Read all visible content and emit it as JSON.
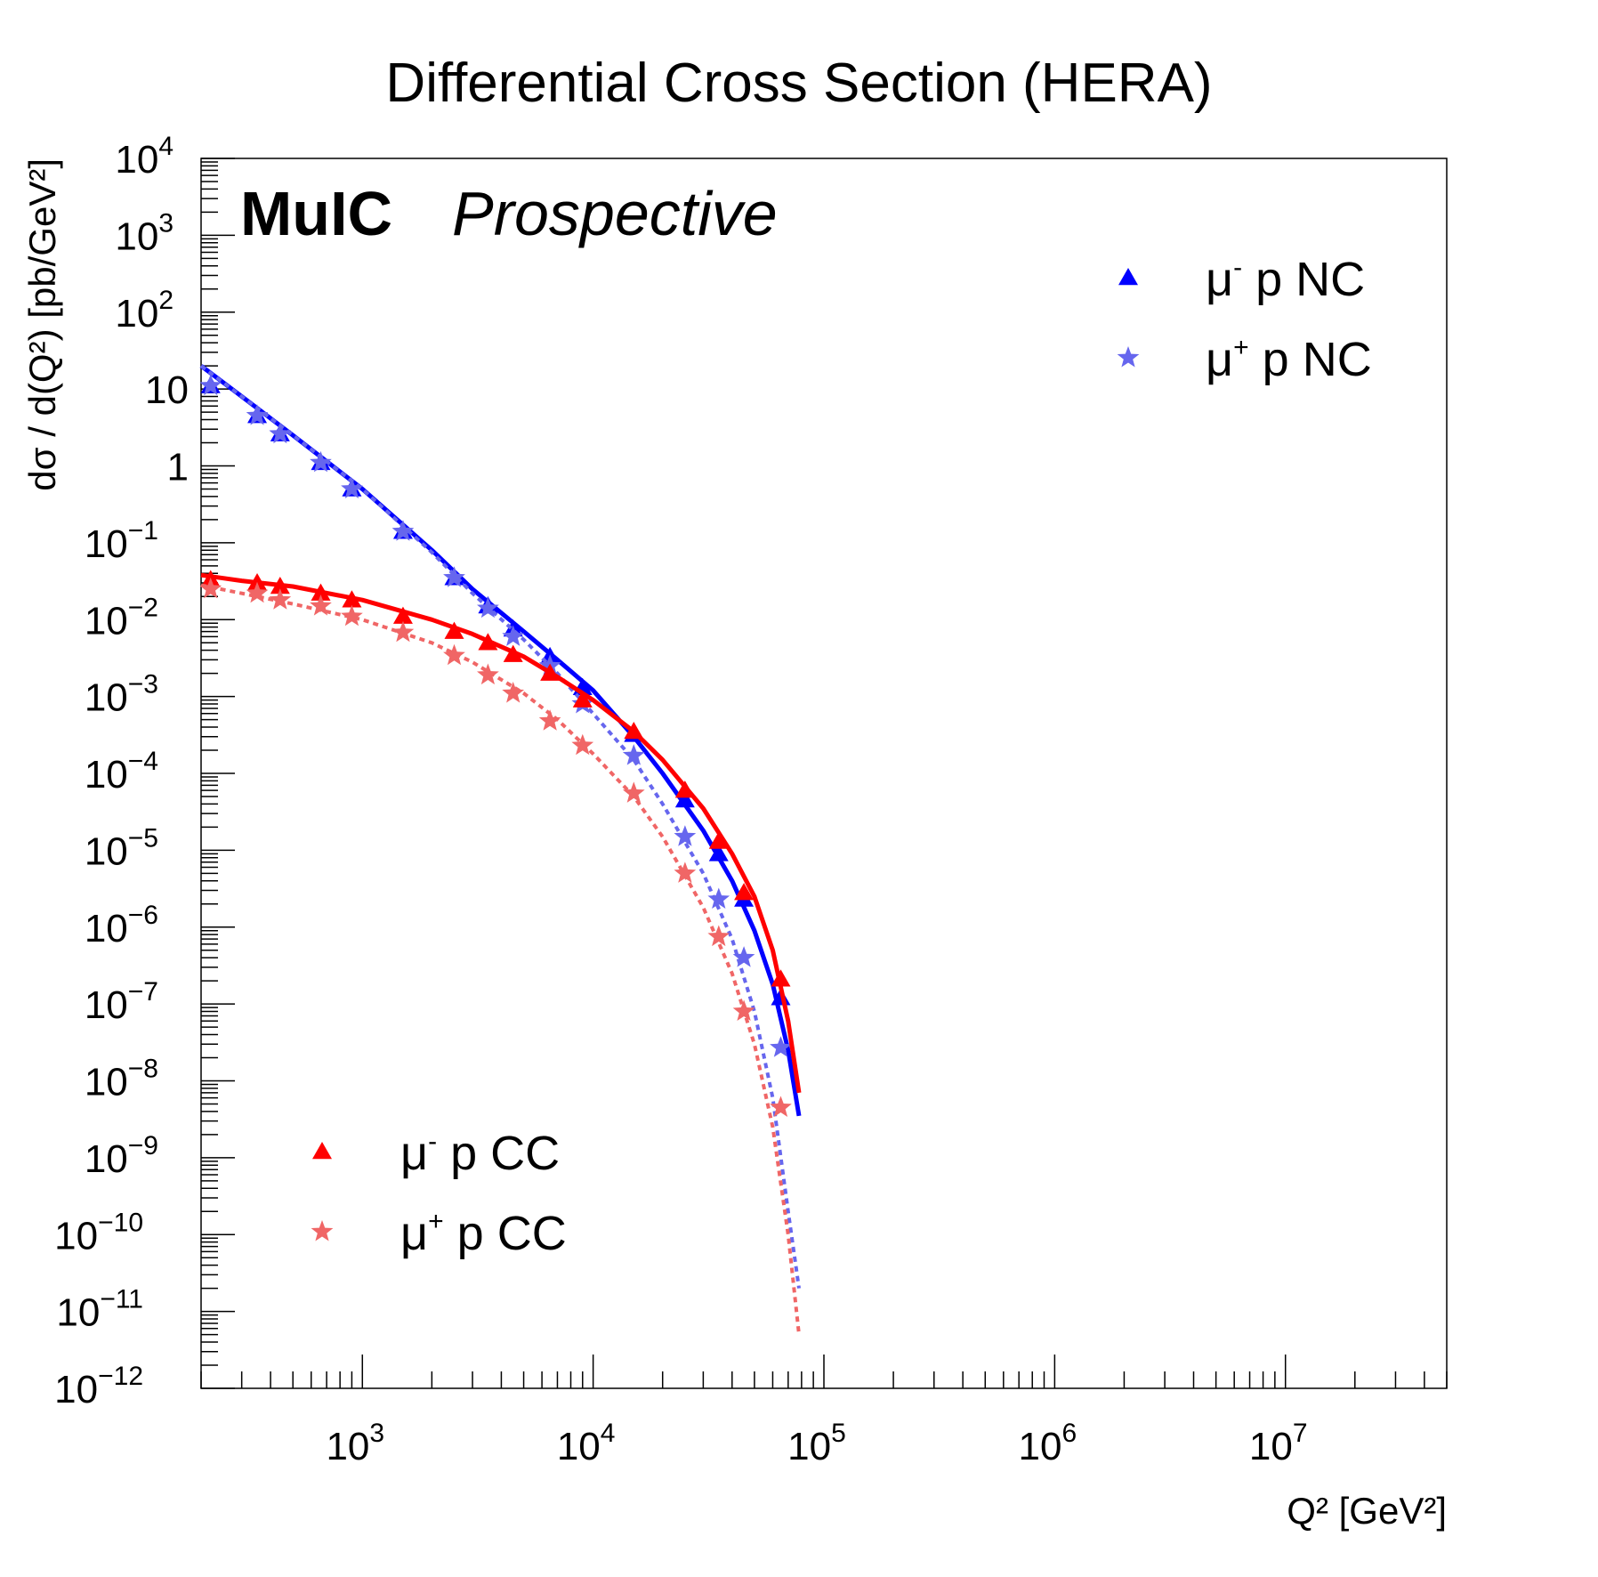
{
  "chart_data": {
    "type": "line",
    "title": "Differential Cross Section (HERA)",
    "xlabel": "Q² [GeV²]",
    "ylabel": "dσ / d(Q²) [pb/GeV²]",
    "xscale": "log",
    "yscale": "log",
    "xlim": [
      200,
      50000000
    ],
    "ylim": [
      1e-12,
      10000
    ],
    "x_ticks": [
      {
        "value": 1000,
        "base": "10",
        "exp": "3"
      },
      {
        "value": 10000,
        "base": "10",
        "exp": "4"
      },
      {
        "value": 100000,
        "base": "10",
        "exp": "5"
      },
      {
        "value": 1000000,
        "base": "10",
        "exp": "6"
      },
      {
        "value": 10000000,
        "base": "10",
        "exp": "7"
      }
    ],
    "y_ticks": [
      {
        "value": 10000,
        "base": "10",
        "exp": "4"
      },
      {
        "value": 1000,
        "base": "10",
        "exp": "3"
      },
      {
        "value": 100,
        "base": "10",
        "exp": "2"
      },
      {
        "value": 10,
        "base": "10",
        "exp": ""
      },
      {
        "value": 1,
        "base": "1",
        "exp": ""
      },
      {
        "value": 0.1,
        "base": "10",
        "exp": "−1"
      },
      {
        "value": 0.01,
        "base": "10",
        "exp": "−2"
      },
      {
        "value": 0.001,
        "base": "10",
        "exp": "−3"
      },
      {
        "value": 0.0001,
        "base": "10",
        "exp": "−4"
      },
      {
        "value": 1e-05,
        "base": "10",
        "exp": "−5"
      },
      {
        "value": 1e-06,
        "base": "10",
        "exp": "−6"
      },
      {
        "value": 1e-07,
        "base": "10",
        "exp": "−7"
      },
      {
        "value": 1e-08,
        "base": "10",
        "exp": "−8"
      },
      {
        "value": 1e-09,
        "base": "10",
        "exp": "−9"
      },
      {
        "value": 1e-10,
        "base": "10",
        "exp": "−10"
      },
      {
        "value": 1e-11,
        "base": "10",
        "exp": "−11"
      },
      {
        "value": 1e-12,
        "base": "10",
        "exp": "−12"
      }
    ],
    "annotations": {
      "experiment": "MuIC",
      "status": "Prospective"
    },
    "legend_groups": [
      {
        "placement": "top-right",
        "entries": [
          "mu_minus_nc",
          "mu_plus_nc"
        ]
      },
      {
        "placement": "bottom-left",
        "entries": [
          "mu_minus_cc",
          "mu_plus_cc"
        ]
      }
    ],
    "series": [
      {
        "id": "mu_minus_nc",
        "name": "μ⁻ p NC",
        "label_main": "μ",
        "label_sup": "-",
        "label_rest": " p NC",
        "color": "#0000ff",
        "marker": "triangle",
        "line_style": "solid",
        "curve": {
          "x": [
            200,
            300,
            500,
            1000,
            2000,
            3000,
            5000,
            7000,
            10000,
            15000,
            20000,
            30000,
            40000,
            50000,
            60000,
            70000,
            78000
          ],
          "y": [
            20,
            8,
            2.5,
            0.5,
            0.08,
            0.025,
            0.007,
            0.003,
            0.0012,
            0.0003,
            0.0001,
            1.8e-05,
            4e-06,
            9e-07,
            1.8e-07,
            2.5e-08,
            3.5e-09
          ]
        },
        "points": {
          "x": [
            220,
            350,
            440,
            660,
            900,
            1500,
            2500,
            3500,
            4500,
            6500,
            9000,
            15000,
            25000,
            35000,
            45000,
            65000
          ],
          "y": [
            11,
            4.5,
            2.6,
            1.1,
            0.5,
            0.14,
            0.035,
            0.015,
            0.0075,
            0.0033,
            0.0013,
            0.00032,
            4.5e-05,
            9e-06,
            2.3e-06,
            1.2e-07
          ]
        }
      },
      {
        "id": "mu_plus_nc",
        "name": "μ⁺ p NC",
        "label_main": "μ",
        "label_sup": "+",
        "label_rest": " p NC",
        "color": "#6666ee",
        "marker": "star",
        "line_style": "dashed",
        "curve": {
          "x": [
            200,
            300,
            500,
            1000,
            2000,
            3000,
            5000,
            7000,
            10000,
            15000,
            20000,
            30000,
            40000,
            50000,
            60000,
            70000,
            78000
          ],
          "y": [
            20,
            8,
            2.5,
            0.5,
            0.075,
            0.022,
            0.0055,
            0.002,
            0.0006,
            0.00015,
            4e-05,
            5e-06,
            7e-07,
            8e-08,
            6e-09,
            2e-10,
            2e-11
          ]
        },
        "points": {
          "x": [
            220,
            350,
            440,
            660,
            900,
            1500,
            2500,
            3500,
            4500,
            6500,
            9000,
            15000,
            25000,
            35000,
            45000,
            65000
          ],
          "y": [
            11,
            4.5,
            2.6,
            1.1,
            0.5,
            0.14,
            0.035,
            0.014,
            0.006,
            0.0025,
            0.0008,
            0.00017,
            1.5e-05,
            2.3e-06,
            4e-07,
            2.7e-08
          ]
        }
      },
      {
        "id": "mu_minus_cc",
        "name": "μ⁻ p CC",
        "label_main": "μ",
        "label_sup": "-",
        "label_rest": " p CC",
        "color": "#ff0000",
        "marker": "triangle",
        "line_style": "solid",
        "curve": {
          "x": [
            200,
            300,
            500,
            1000,
            2000,
            3000,
            5000,
            7000,
            10000,
            15000,
            20000,
            30000,
            40000,
            50000,
            60000,
            70000,
            78000
          ],
          "y": [
            0.038,
            0.032,
            0.027,
            0.018,
            0.01,
            0.0065,
            0.0033,
            0.0018,
            0.0009,
            0.00035,
            0.00015,
            3.5e-05,
            9e-06,
            2.5e-06,
            5e-07,
            6e-08,
            7e-09
          ]
        },
        "points": {
          "x": [
            220,
            350,
            440,
            660,
            900,
            1500,
            2500,
            3500,
            4500,
            6500,
            9000,
            15000,
            25000,
            35000,
            45000,
            65000
          ],
          "y": [
            0.033,
            0.03,
            0.027,
            0.022,
            0.018,
            0.011,
            0.007,
            0.005,
            0.0035,
            0.002,
            0.0009,
            0.00035,
            6e-05,
            1.3e-05,
            2.8e-06,
            2.1e-07
          ]
        }
      },
      {
        "id": "mu_plus_cc",
        "name": "μ⁺ p CC",
        "label_main": "μ",
        "label_sup": "+",
        "label_rest": " p CC",
        "color": "#f06666",
        "marker": "star",
        "line_style": "dashed",
        "curve": {
          "x": [
            200,
            300,
            500,
            1000,
            2000,
            3000,
            5000,
            7000,
            10000,
            15000,
            20000,
            30000,
            40000,
            50000,
            60000,
            70000,
            78000
          ],
          "y": [
            0.028,
            0.022,
            0.016,
            0.01,
            0.005,
            0.0028,
            0.0011,
            0.0005,
            0.00018,
            5e-05,
            1.5e-05,
            1.8e-06,
            2.5e-07,
            3e-08,
            2.5e-09,
            1e-10,
            5e-12
          ]
        },
        "points": {
          "x": [
            220,
            350,
            440,
            660,
            900,
            1500,
            2500,
            3500,
            4500,
            6500,
            9000,
            15000,
            25000,
            35000,
            45000,
            65000
          ],
          "y": [
            0.025,
            0.022,
            0.018,
            0.015,
            0.011,
            0.0068,
            0.0034,
            0.0019,
            0.0011,
            0.00048,
            0.00023,
            5.5e-05,
            5e-06,
            7.5e-07,
            8e-08,
            4.5e-09
          ]
        }
      }
    ]
  }
}
